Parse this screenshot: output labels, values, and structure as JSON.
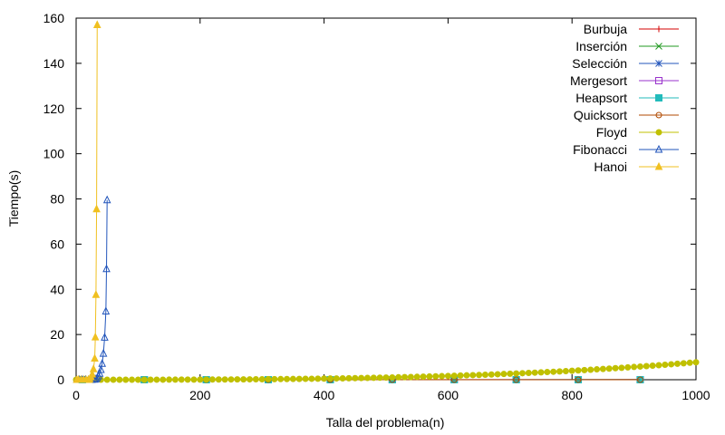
{
  "chart_data": {
    "type": "line",
    "title": "",
    "xlabel": "Talla del problema(n)",
    "ylabel": "Tiempo(s)",
    "xlim": [
      0,
      1000
    ],
    "ylim": [
      0,
      160
    ],
    "xticks": [
      0,
      200,
      400,
      600,
      800,
      1000
    ],
    "yticks": [
      0,
      20,
      40,
      60,
      80,
      100,
      120,
      140,
      160
    ],
    "grid": false,
    "legend_position": "top-right",
    "series": [
      {
        "name": "Burbuja",
        "color": "#d40000",
        "marker": "plus",
        "x": [
          10,
          110,
          210,
          310,
          410,
          510,
          610,
          710,
          810,
          910
        ],
        "y": [
          0,
          0,
          0,
          0.01,
          0.02,
          0.03,
          0.04,
          0.05,
          0.07,
          0.09
        ]
      },
      {
        "name": "Inserción",
        "color": "#229922",
        "marker": "cross",
        "x": [
          10,
          110,
          210,
          310,
          410,
          510,
          610,
          710,
          810,
          910
        ],
        "y": [
          0,
          0,
          0,
          0,
          0.01,
          0.01,
          0.02,
          0.02,
          0.03,
          0.04
        ]
      },
      {
        "name": "Selección",
        "color": "#2255bb",
        "marker": "asterisk",
        "x": [
          10,
          110,
          210,
          310,
          410,
          510,
          610,
          710,
          810,
          910
        ],
        "y": [
          0,
          0,
          0,
          0,
          0.01,
          0.02,
          0.02,
          0.03,
          0.04,
          0.05
        ]
      },
      {
        "name": "Mergesort",
        "color": "#9933cc",
        "marker": "square-open",
        "x": [
          10,
          110,
          210,
          310,
          410,
          510,
          610,
          710,
          810,
          910
        ],
        "y": [
          0,
          0,
          0,
          0,
          0,
          0,
          0,
          0,
          0,
          0
        ]
      },
      {
        "name": "Heapsort",
        "color": "#22bbbb",
        "marker": "square-filled",
        "x": [
          10,
          110,
          210,
          310,
          410,
          510,
          610,
          710,
          810,
          910
        ],
        "y": [
          0,
          0,
          0,
          0,
          0,
          0,
          0,
          0,
          0,
          0
        ]
      },
      {
        "name": "Quicksort",
        "color": "#b04a00",
        "marker": "circle-open",
        "x": [
          10,
          110,
          210,
          310,
          410,
          510,
          610,
          710,
          810,
          910
        ],
        "y": [
          0,
          0,
          0,
          0,
          0,
          0,
          0,
          0,
          0,
          0
        ]
      },
      {
        "name": "Floyd",
        "color": "#c0c000",
        "marker": "circle-filled",
        "x": [
          0,
          10,
          20,
          30,
          40,
          50,
          60,
          70,
          80,
          90,
          100,
          110,
          120,
          130,
          140,
          150,
          160,
          170,
          180,
          190,
          200,
          210,
          220,
          230,
          240,
          250,
          260,
          270,
          280,
          290,
          300,
          310,
          320,
          330,
          340,
          350,
          360,
          370,
          380,
          390,
          400,
          410,
          420,
          430,
          440,
          450,
          460,
          470,
          480,
          490,
          500,
          510,
          520,
          530,
          540,
          550,
          560,
          570,
          580,
          590,
          600,
          610,
          620,
          630,
          640,
          650,
          660,
          670,
          680,
          690,
          700,
          710,
          720,
          730,
          740,
          750,
          760,
          770,
          780,
          790,
          800,
          810,
          820,
          830,
          840,
          850,
          860,
          870,
          880,
          890,
          900,
          910,
          920,
          930,
          940,
          950,
          960,
          970,
          980,
          990,
          1000
        ],
        "y": [
          0,
          0,
          0,
          0,
          0,
          0,
          0,
          0,
          0,
          0,
          0.01,
          0.01,
          0.01,
          0.02,
          0.02,
          0.03,
          0.03,
          0.04,
          0.05,
          0.05,
          0.06,
          0.07,
          0.08,
          0.09,
          0.11,
          0.12,
          0.14,
          0.15,
          0.17,
          0.19,
          0.21,
          0.23,
          0.25,
          0.28,
          0.3,
          0.33,
          0.36,
          0.39,
          0.42,
          0.46,
          0.49,
          0.53,
          0.57,
          0.61,
          0.66,
          0.7,
          0.75,
          0.8,
          0.85,
          0.91,
          0.96,
          1.02,
          1.08,
          1.15,
          1.21,
          1.28,
          1.35,
          1.43,
          1.51,
          1.58,
          1.67,
          1.75,
          1.84,
          1.93,
          2.02,
          2.12,
          2.22,
          2.32,
          2.43,
          2.54,
          2.65,
          2.77,
          2.88,
          3.01,
          3.13,
          3.26,
          3.39,
          3.53,
          3.67,
          3.81,
          3.96,
          4.11,
          4.27,
          4.42,
          4.59,
          4.75,
          4.92,
          5.1,
          5.27,
          5.46,
          5.64,
          5.83,
          6.03,
          6.22,
          6.43,
          6.63,
          6.84,
          7.06,
          7.28,
          7.5,
          7.73
        ]
      },
      {
        "name": "Fibonacci",
        "color": "#2255bb",
        "marker": "triangle-open",
        "x": [
          1,
          5,
          10,
          15,
          20,
          25,
          30,
          32,
          34,
          36,
          38,
          40,
          42,
          44,
          46,
          48
        ],
        "y": [
          0,
          0,
          0,
          0,
          0,
          0,
          0.1,
          0.3,
          0.8,
          1.6,
          2.7,
          4.4,
          7.1,
          11.6,
          18.7,
          30.3
        ]
      },
      {
        "name": "Hanoi",
        "color": "#f0c020",
        "marker": "triangle-filled",
        "x": [
          1,
          4,
          8,
          12,
          16,
          20,
          22,
          24,
          26,
          28,
          30,
          31,
          32,
          33,
          34
        ],
        "y": [
          0,
          0,
          0,
          0,
          0,
          0,
          0.3,
          1.2,
          2.4,
          4.7,
          9.4,
          18.8,
          37.6,
          75.5,
          157
        ]
      }
    ],
    "extra_points": {
      "Fibonacci": {
        "x": [
          49,
          50
        ],
        "y": [
          49,
          79.5
        ]
      }
    }
  }
}
